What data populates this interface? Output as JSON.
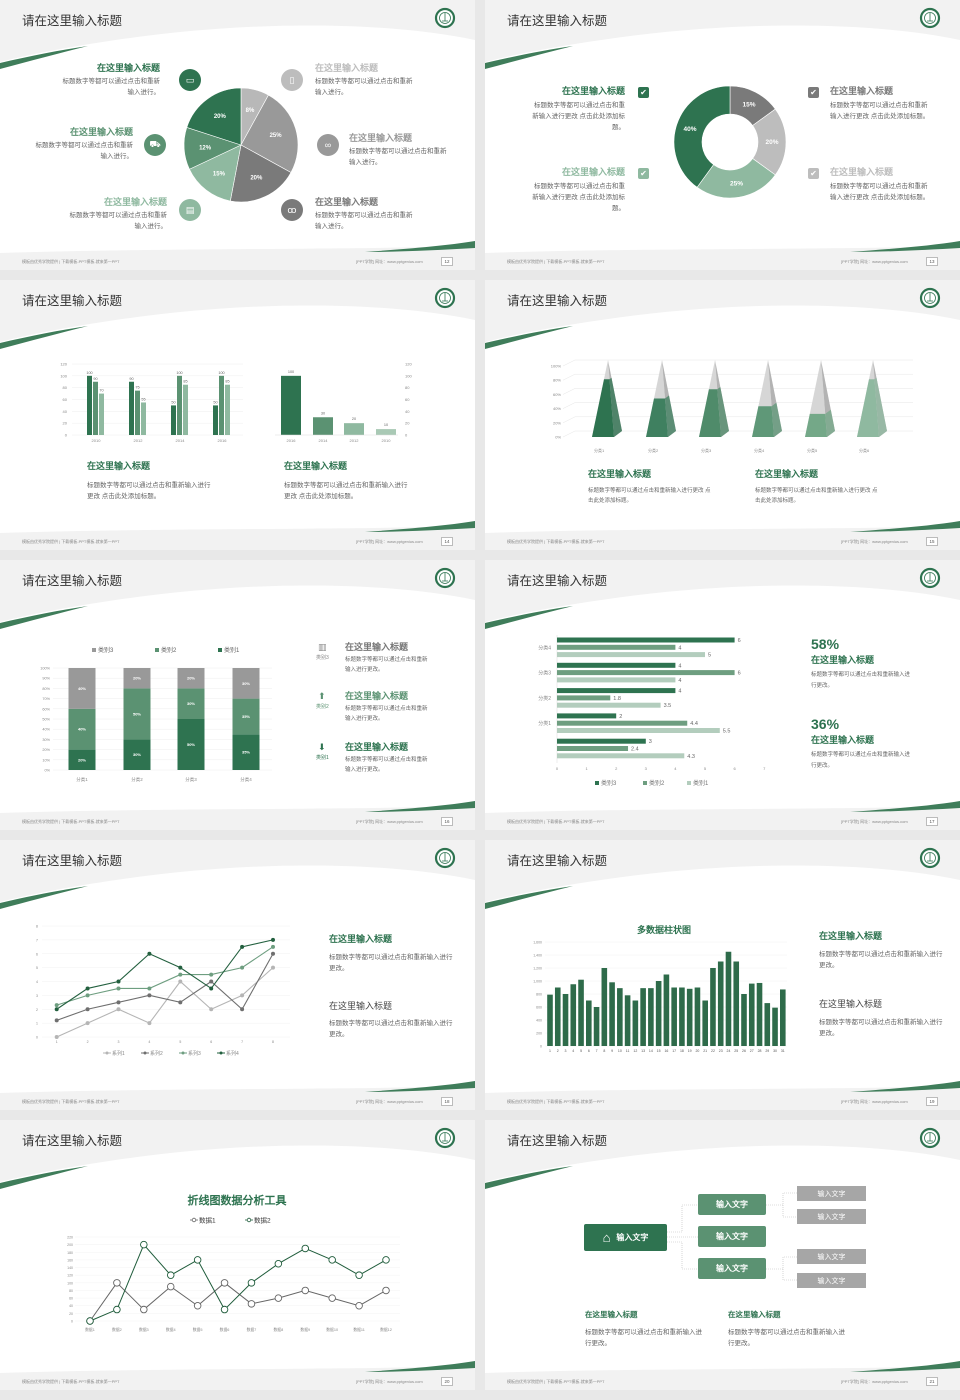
{
  "common": {
    "slide_title": "请在这里输入标题",
    "footer_left": "模板由优秀学院提供 | 下载模板-PPT模板-就来第一PPT",
    "footer_right": "[PPT学院]  网址：www.pptgenius.com",
    "heading": "在这里输入标题"
  },
  "colors": {
    "dark_green": "#2e7350",
    "mid_green": "#5b9272",
    "light_green": "#8fb9a0",
    "pale_green": "#a9c9b5",
    "dark_gray": "#7a7a7a",
    "gray": "#999999",
    "light_gray": "#bdbdbd"
  },
  "slides": [
    {
      "page": "12",
      "items": [
        {
          "title": "在这里输入标题",
          "text": "标题数字等都可以通过点击和重新输入进行。",
          "icon": "monitor-icon"
        },
        {
          "title": "在这里输入标题",
          "text": "标题数字等都可以通过点击和重新输入进行。",
          "icon": "car-icon"
        },
        {
          "title": "在这里输入标题",
          "text": "标题数字等都可以通过点击和重新输入进行。",
          "icon": "book-icon"
        },
        {
          "title": "在这里输入标题",
          "text": "标题数字等都可以通过点击和重新输入进行。",
          "icon": "mobile-icon"
        },
        {
          "title": "在这里输入标题",
          "text": "标题数字等都可以通过点击和重新输入进行。",
          "icon": "binoculars-icon"
        },
        {
          "title": "在这里输入标题",
          "text": "标题数字等都可以通过点击和重新输入进行。",
          "icon": "bicycle-icon"
        }
      ]
    },
    {
      "page": "13",
      "items": [
        {
          "title": "在这里输入标题",
          "text": "标题数字等都可以通过点击和重新输入进行更改 点击此处添加标题。",
          "icon": "checkbox-icon"
        },
        {
          "title": "在这里输入标题",
          "text": "标题数字等都可以通过点击和重新输入进行更改 点击此处添加标题。",
          "icon": "checkbox-icon"
        },
        {
          "title": "在这里输入标题",
          "text": "标题数字等都可以通过点击和重新输入进行更改 点击此处添加标题。",
          "icon": "checkbox-icon"
        },
        {
          "title": "在这里输入标题",
          "text": "标题数字等都可以通过点击和重新输入进行更改 点击此处添加标题。",
          "icon": "checkbox-icon"
        }
      ]
    },
    {
      "page": "14",
      "items": [
        {
          "title": "在这里输入标题",
          "text": "标题数字等都可以通过点击和重新输入进行更改 点击此处添加标题。"
        },
        {
          "title": "在这里输入标题",
          "text": "标题数字等都可以通过点击和重新输入进行更改 点击此处添加标题。"
        }
      ]
    },
    {
      "page": "15",
      "items": [
        {
          "title": "在这里输入标题",
          "text": "标题数字等都可以通过点击和重新输入进行更改 点击此处添加标题。"
        },
        {
          "title": "在这里输入标题",
          "text": "标题数字等都可以通过点击和重新输入进行更改 点击此处添加标题。"
        }
      ]
    },
    {
      "page": "16",
      "items": [
        {
          "title": "在这里输入标题",
          "text": "标题数字等都可以通过点击和重新输入进行更改。",
          "label": "类别3",
          "icon": "bar-chart-icon"
        },
        {
          "title": "在这里输入标题",
          "text": "标题数字等都可以通过点击和重新输入进行更改。",
          "label": "类别2",
          "icon": "upload-icon"
        },
        {
          "title": "在这里输入标题",
          "text": "标题数字等都可以通过点击和重新输入进行更改。",
          "label": "类别1",
          "icon": "download-icon"
        }
      ]
    },
    {
      "page": "17",
      "items": [
        {
          "stat": "58%",
          "title": "在这里输入标题",
          "text": "标题数字等都可以通过点击和重新输入进行更改。"
        },
        {
          "stat": "36%",
          "title": "在这里输入标题",
          "text": "标题数字等都可以通过点击和重新输入进行更改。"
        }
      ]
    },
    {
      "page": "18",
      "items": [
        {
          "title": "在这里输入标题",
          "text": "标题数字等都可以通过点击和重新输入进行更改。"
        },
        {
          "title": "在这里输入标题",
          "text": "标题数字等都可以通过点击和重新输入进行更改。"
        }
      ]
    },
    {
      "page": "19",
      "items": [
        {
          "title": "在这里输入标题",
          "text": "标题数字等都可以通过点击和重新输入进行更改。"
        },
        {
          "title": "在这里输入标题",
          "text": "标题数字等都可以通过点击和重新输入进行更改。"
        }
      ]
    },
    {
      "page": "20",
      "items": []
    },
    {
      "page": "21",
      "org": {
        "root": "输入文字",
        "children": [
          "输入文字",
          "输入文字",
          "输入文字"
        ],
        "leaves": [
          "输入文字",
          "输入文字",
          "输入文字",
          "输入文字"
        ]
      },
      "items": [
        {
          "title": "在这里输入标题",
          "text": "标题数字等都可以通过点击和重新输入进行更改。"
        },
        {
          "title": "在这里输入标题",
          "text": "标题数字等都可以通过点击和重新输入进行更改。"
        }
      ]
    }
  ],
  "chart_data": [
    {
      "type": "pie",
      "values": [
        8,
        25,
        20,
        15,
        12,
        20
      ],
      "colors": [
        "#b8b8b8",
        "#999999",
        "#7a7a7a",
        "#8fb9a0",
        "#5b9272",
        "#2e7350"
      ]
    },
    {
      "type": "pie",
      "donut": true,
      "values": [
        15,
        20,
        25,
        40
      ],
      "colors": [
        "#7a7a7a",
        "#bdbdbd",
        "#8fb9a0",
        "#2e7350"
      ]
    },
    {
      "type": "bar",
      "categories": [
        "2010",
        "2012",
        "2014",
        "2016"
      ],
      "series": [
        {
          "values": [
            100,
            90,
            50,
            50
          ]
        },
        {
          "values": [
            90,
            75,
            100,
            100
          ]
        },
        {
          "values": [
            70,
            55,
            85,
            85
          ]
        }
      ],
      "ylim": [
        0,
        120
      ],
      "yticks": [
        "0",
        "20",
        "40",
        "60",
        "80",
        "100",
        "120"
      ],
      "colors": [
        "#2e7350",
        "#5b9272",
        "#8fb9a0"
      ]
    },
    {
      "type": "bar",
      "categories": [
        "2016",
        "2014",
        "2012",
        "2010"
      ],
      "values": [
        100,
        30,
        20,
        10
      ],
      "ylim": [
        0,
        120
      ],
      "yticks": [
        "0",
        "20",
        "40",
        "60",
        "80",
        "100",
        "120"
      ],
      "colors": [
        "#2e7350",
        "#5b9272",
        "#8fb9a0",
        "#a9c9b5"
      ]
    },
    {
      "type": "bar",
      "style": "3d-pyramid",
      "categories": [
        "分类1",
        "分类2",
        "分类3",
        "分类4",
        "分类5",
        "分类6"
      ],
      "values": [
        75,
        50,
        62,
        40,
        30,
        75
      ],
      "ylim": [
        0,
        100
      ],
      "yticks": [
        "0%",
        "20%",
        "40%",
        "60%",
        "80%",
        "100%"
      ],
      "colors": [
        "#2e7350",
        "#3f8060",
        "#4f8b6a",
        "#5f9878",
        "#74a888",
        "#8fb9a0"
      ]
    },
    {
      "type": "bar",
      "stacked": true,
      "categories": [
        "分类1",
        "分类2",
        "分类3",
        "分类4"
      ],
      "series": [
        {
          "name": "类别1",
          "values": [
            20,
            30,
            50,
            35
          ],
          "color": "#2e7350"
        },
        {
          "name": "类别2",
          "values": [
            40,
            50,
            30,
            35
          ],
          "color": "#5b9272"
        },
        {
          "name": "类别3",
          "values": [
            40,
            20,
            20,
            30
          ],
          "color": "#999999"
        }
      ],
      "ylim": [
        0,
        100
      ],
      "yticks": [
        "0%",
        "10%",
        "20%",
        "30%",
        "40%",
        "50%",
        "60%",
        "70%",
        "80%",
        "90%",
        "100%"
      ],
      "legend": "top"
    },
    {
      "type": "bar",
      "orientation": "horizontal",
      "categories": [
        "分类4",
        "分类3",
        "分类2",
        "分类1",
        ""
      ],
      "series": [
        {
          "name": "类别3",
          "values": [
            6,
            4,
            4,
            2,
            3
          ],
          "color": "#2e7350"
        },
        {
          "name": "类别2",
          "values": [
            4,
            6,
            1.8,
            4.4,
            2.4
          ],
          "color": "#6e9e80"
        },
        {
          "name": "类别1",
          "values": [
            5,
            4,
            3.5,
            5.5,
            4.3
          ],
          "color": "#b3cdbd"
        }
      ],
      "xlim": [
        0,
        7
      ],
      "xticks": [
        "0",
        "1",
        "2",
        "3",
        "4",
        "5",
        "6",
        "7"
      ],
      "legend": "bottom"
    },
    {
      "type": "line",
      "x": [
        "1",
        "2",
        "3",
        "4",
        "5",
        "6",
        "7",
        "8"
      ],
      "series": [
        {
          "name": "系列1",
          "values": [
            0,
            1,
            2,
            1,
            4,
            2,
            3,
            5
          ],
          "color": "#b5b5b5"
        },
        {
          "name": "系列2",
          "values": [
            1.2,
            2,
            2.5,
            3,
            2.5,
            4,
            2,
            6
          ],
          "color": "#6f6f6f"
        },
        {
          "name": "系列3",
          "values": [
            2.3,
            3,
            3.5,
            3.5,
            4.5,
            4.5,
            5,
            6.5
          ],
          "color": "#6e9e80"
        },
        {
          "name": "系列4",
          "values": [
            2,
            3.5,
            4,
            6,
            5,
            3.5,
            6.5,
            7
          ],
          "color": "#23603f"
        }
      ],
      "ylim": [
        0,
        8
      ],
      "yticks": [
        "0",
        "1",
        "2",
        "3",
        "4",
        "5",
        "6",
        "7",
        "8"
      ],
      "legend": "bottom"
    },
    {
      "type": "bar",
      "title": "多数据柱状图",
      "categories": [
        "1",
        "2",
        "3",
        "4",
        "5",
        "6",
        "7",
        "8",
        "9",
        "10",
        "11",
        "12",
        "13",
        "14",
        "15",
        "16",
        "17",
        "18",
        "19",
        "20",
        "21",
        "22",
        "23",
        "24",
        "25",
        "26",
        "27",
        "28",
        "29",
        "30",
        "31"
      ],
      "values": [
        790,
        900,
        800,
        950,
        1020,
        700,
        600,
        1200,
        980,
        890,
        780,
        700,
        890,
        890,
        1000,
        1100,
        900,
        900,
        880,
        900,
        700,
        1200,
        1300,
        1450,
        1300,
        800,
        960,
        970,
        660,
        590,
        870
      ],
      "ylim": [
        0,
        1600
      ],
      "yticks": [
        "0",
        "200",
        "400",
        "600",
        "800",
        "1,000",
        "1,200",
        "1,400",
        "1,600"
      ],
      "color": "#2e6b4a"
    },
    {
      "type": "line",
      "title": "折线图数据分析工具",
      "categories": [
        "数据1",
        "数据2",
        "数据3",
        "数据4",
        "数据5",
        "数据6",
        "数据7",
        "数据8",
        "数据9",
        "数据10",
        "数据11",
        "数据12"
      ],
      "series": [
        {
          "name": "数据1",
          "values": [
            0,
            100,
            30,
            90,
            40,
            100,
            45,
            60,
            80,
            60,
            40,
            80
          ],
          "color": "#666666"
        },
        {
          "name": "数据2",
          "values": [
            0,
            30,
            200,
            120,
            160,
            30,
            100,
            150,
            190,
            160,
            120,
            160
          ],
          "color": "#1f5c3b"
        }
      ],
      "ylim": [
        0,
        220
      ],
      "yticks": [
        "0",
        "20",
        "40",
        "60",
        "80",
        "100",
        "120",
        "140",
        "160",
        "180",
        "200",
        "220"
      ],
      "legend": "top"
    }
  ]
}
